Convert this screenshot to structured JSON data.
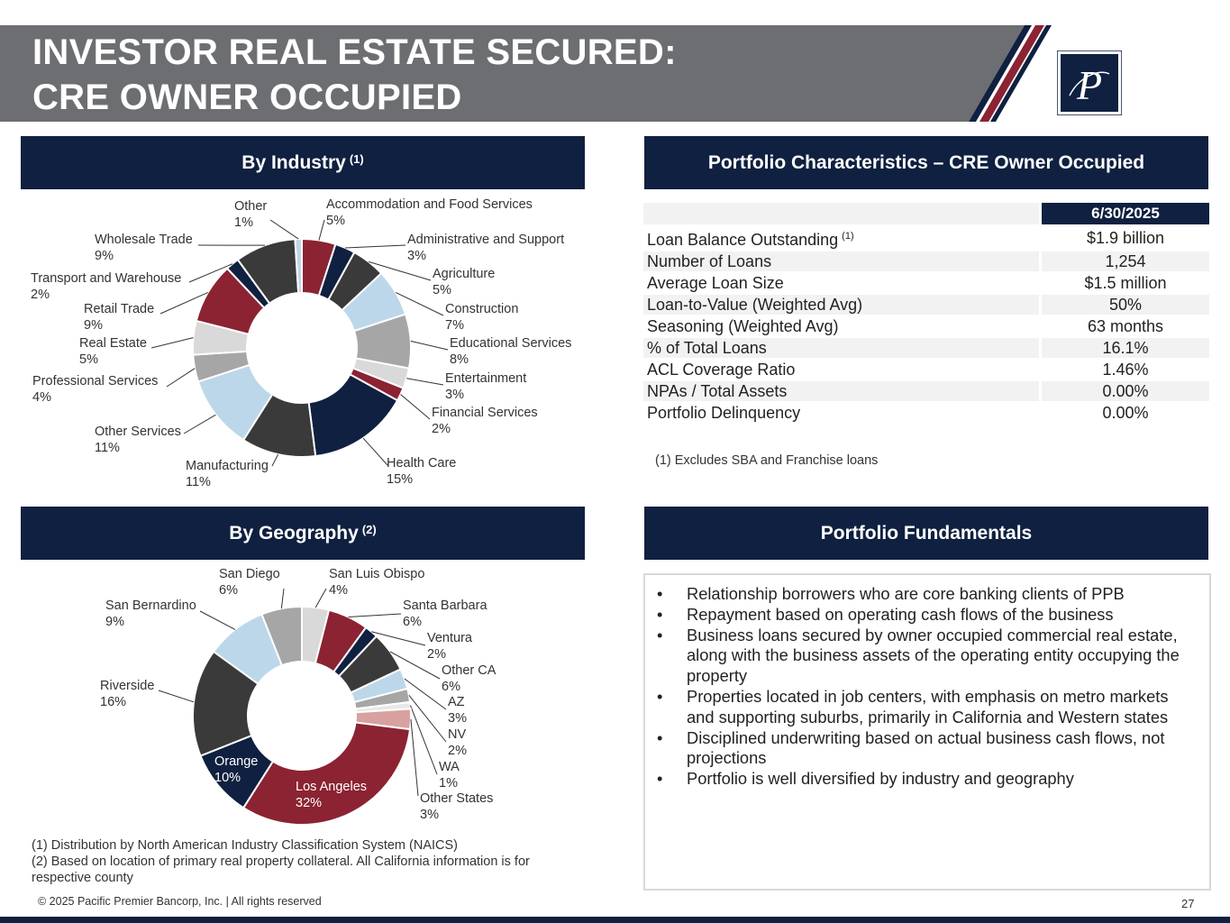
{
  "header": {
    "title_line1": "INVESTOR REAL ESTATE SECURED:",
    "title_line2": "CRE OWNER OCCUPIED"
  },
  "colors": {
    "navy": "#0f2040",
    "maroon": "#8b2332",
    "gray": "#6d6e71"
  },
  "industry": {
    "heading": "By Industry",
    "heading_note": "(1)"
  },
  "geography": {
    "heading": "By Geography",
    "heading_note": "(2)"
  },
  "chart_data": [
    {
      "type": "pie",
      "title": "By Industry",
      "categories": [
        "Accommodation and Food Services",
        "Administrative and Support",
        "Agriculture",
        "Construction",
        "Educational Services",
        "Entertainment",
        "Financial Services",
        "Health Care",
        "Manufacturing",
        "Other Services",
        "Professional Services",
        "Real Estate",
        "Retail Trade",
        "Transport and Warehouse",
        "Wholesale Trade",
        "Other"
      ],
      "values": [
        5,
        3,
        5,
        7,
        8,
        3,
        2,
        15,
        11,
        11,
        4,
        5,
        9,
        2,
        9,
        1
      ],
      "labels": [
        "5%",
        "3%",
        "5%",
        "7%",
        "8%",
        "3%",
        "2%",
        "15%",
        "11%",
        "11%",
        "4%",
        "5%",
        "9%",
        "2%",
        "9%",
        "1%"
      ],
      "colors": [
        "#8b2332",
        "#0f2040",
        "#3a3a3a",
        "#bdd7ea",
        "#a6a6a6",
        "#d9d9d9",
        "#8b2332",
        "#0f2040",
        "#3a3a3a",
        "#bdd7ea",
        "#a6a6a6",
        "#d9d9d9",
        "#8b2332",
        "#0f2040",
        "#3a3a3a",
        "#bdd7ea"
      ],
      "hole": true
    },
    {
      "type": "pie",
      "title": "By Geography",
      "categories": [
        "San Luis Obispo",
        "Santa Barbara",
        "Ventura",
        "Other CA",
        "AZ",
        "NV",
        "WA",
        "Other States",
        "Los Angeles",
        "Orange",
        "Riverside",
        "San Bernardino",
        "San Diego"
      ],
      "values": [
        4,
        6,
        2,
        6,
        3,
        2,
        1,
        3,
        32,
        10,
        16,
        9,
        6
      ],
      "labels": [
        "4%",
        "6%",
        "2%",
        "6%",
        "3%",
        "2%",
        "1%",
        "3%",
        "32%",
        "10%",
        "16%",
        "9%",
        "6%"
      ],
      "colors": [
        "#d9d9d9",
        "#8b2332",
        "#0f2040",
        "#3a3a3a",
        "#bdd7ea",
        "#a6a6a6",
        "#e8e8e8",
        "#d9a0a0",
        "#8b2332",
        "#0f2040",
        "#3a3a3a",
        "#bdd7ea",
        "#a6a6a6"
      ],
      "hole": true
    }
  ],
  "portfolio": {
    "heading": "Portfolio Characteristics – CRE Owner Occupied",
    "date_header": "6/30/2025",
    "rows": [
      {
        "label": "Loan Balance Outstanding",
        "note": "(1)",
        "value": "$1.9 billion"
      },
      {
        "label": "Number of Loans",
        "note": "",
        "value": "1,254"
      },
      {
        "label": "Average Loan Size",
        "note": "",
        "value": "$1.5 million"
      },
      {
        "label": "Loan-to-Value (Weighted Avg)",
        "note": "",
        "value": "50%"
      },
      {
        "label": "Seasoning (Weighted Avg)",
        "note": "",
        "value": "63 months"
      },
      {
        "label": "% of Total Loans",
        "note": "",
        "value": "16.1%"
      },
      {
        "label": "ACL Coverage Ratio",
        "note": "",
        "value": "1.46%"
      },
      {
        "label": "NPAs / Total Assets",
        "note": "",
        "value": "0.00%"
      },
      {
        "label": "Portfolio Delinquency",
        "note": "",
        "value": "0.00%"
      }
    ],
    "footnote": "(1) Excludes SBA and Franchise loans"
  },
  "fundamentals": {
    "heading": "Portfolio Fundamentals",
    "bullets": [
      "Relationship borrowers who are core banking clients of PPB",
      "Repayment based on operating cash flows of the business",
      "Business loans secured by owner occupied commercial real estate, along with the business assets of the operating entity occupying the property",
      "Properties located in job centers, with emphasis on metro markets and supporting suburbs, primarily in California and Western states",
      "Disciplined underwriting based on actual business cash flows, not projections",
      "Portfolio is well diversified by industry and geography"
    ]
  },
  "footnotes": {
    "note1": "(1) Distribution by North American Industry Classification System (NAICS)",
    "note2": "(2) Based on location of primary real property collateral. All California information is for respective county"
  },
  "footer": {
    "copyright": "© 2025 Pacific Premier Bancorp, Inc. | All rights reserved",
    "page_number": "27"
  }
}
